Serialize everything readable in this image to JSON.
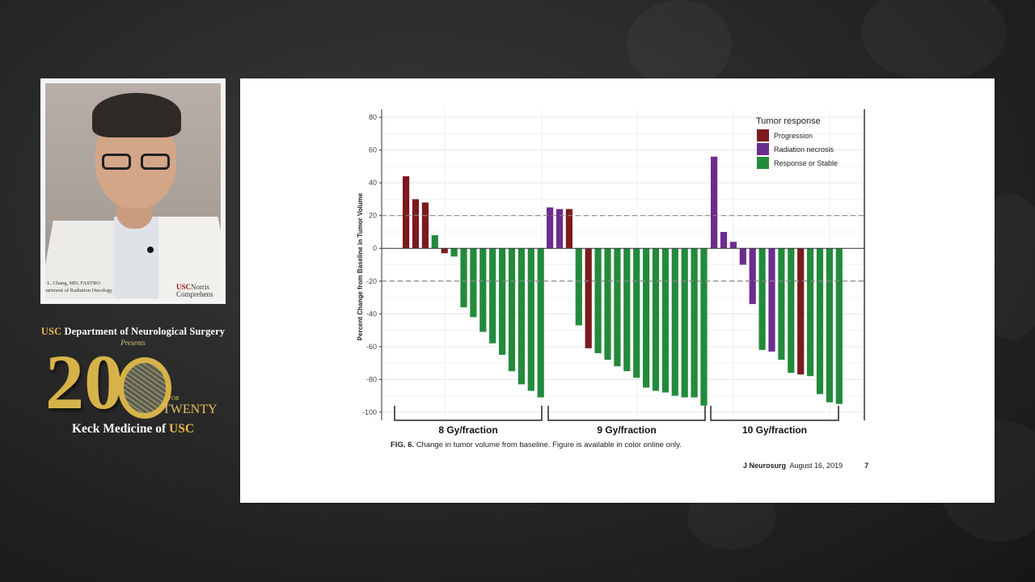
{
  "colors": {
    "progression": "#7b1a1f",
    "necrosis": "#6b2d8f",
    "stable": "#238a3c",
    "gold": "#e8b84a"
  },
  "speaker": {
    "coat_name": "ic L. Chang, MD, FASTRO",
    "coat_dept": "epartment of Radiation Oncology",
    "coat_brand_usc": "USC",
    "coat_brand_rest": "Norris",
    "coat_brand_line2": "Comprehens"
  },
  "logo": {
    "usc": "USC",
    "dept": "Department of Neurological Surgery",
    "presents": "Presents",
    "big_number": "20",
    "for": "FOR",
    "twenty": "TWENTY",
    "keck_prefix": "Keck Medicine of",
    "keck_usc": "USC"
  },
  "slide": {
    "caption_fig": "FIG. 6.",
    "caption_text": "Change in tumor volume from baseline. Figure is available in color online only.",
    "journal": "J Neurosurg",
    "date": "August 16, 2019",
    "page": "7"
  },
  "chart_data": {
    "type": "bar",
    "title": "",
    "ylabel": "Percent Change from Baseline in Tumor Volume",
    "xlabel": "",
    "ylim": [
      -105,
      85
    ],
    "yticks": [
      80,
      60,
      40,
      20,
      0,
      -20,
      -40,
      -60,
      -80,
      -100
    ],
    "reference_lines": [
      20,
      -20
    ],
    "grid": true,
    "legend": {
      "title": "Tumor response",
      "placement": "top-right",
      "entries": [
        {
          "label": "Progression",
          "key": "P"
        },
        {
          "label": "Radiation necrosis",
          "key": "N"
        },
        {
          "label": "Response or Stable",
          "key": "S"
        }
      ]
    },
    "groups": [
      {
        "label": "8 Gy/fraction",
        "values": [
          44,
          30,
          28,
          8,
          -3,
          -5,
          -36,
          -42,
          -51,
          -58,
          -65,
          -75,
          -83,
          -87,
          -91
        ],
        "types": [
          "P",
          "P",
          "P",
          "S",
          "P",
          "S",
          "S",
          "S",
          "S",
          "S",
          "S",
          "S",
          "S",
          "S",
          "S"
        ]
      },
      {
        "label": "9 Gy/fraction",
        "values": [
          25,
          24,
          24,
          -47,
          -61,
          -64,
          -68,
          -72,
          -75,
          -79,
          -85,
          -87,
          -88,
          -90,
          -91,
          -91,
          -96
        ],
        "types": [
          "N",
          "N",
          "P",
          "S",
          "P",
          "S",
          "S",
          "S",
          "S",
          "S",
          "S",
          "S",
          "S",
          "S",
          "S",
          "S",
          "S"
        ]
      },
      {
        "label": "10 Gy/fraction",
        "values": [
          56,
          10,
          4,
          -10,
          -34,
          -62,
          -63,
          -68,
          -76,
          -77,
          -78,
          -89,
          -94,
          -95
        ],
        "types": [
          "N",
          "N",
          "N",
          "N",
          "N",
          "S",
          "N",
          "S",
          "S",
          "P",
          "S",
          "S",
          "S",
          "S"
        ]
      }
    ]
  }
}
